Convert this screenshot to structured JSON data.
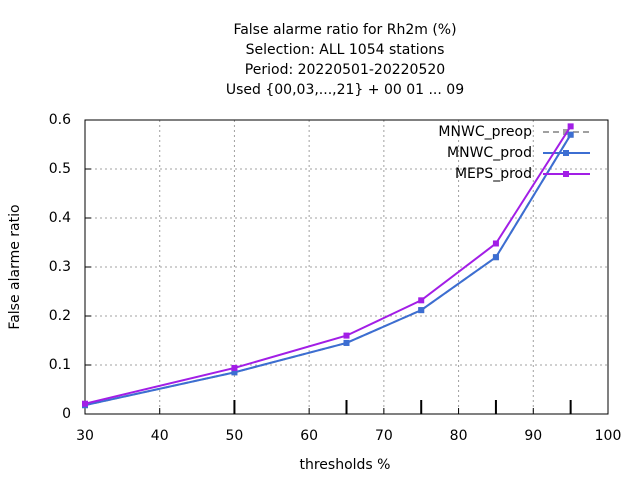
{
  "chart_data": {
    "type": "line",
    "title": [
      "False alarme ratio  for Rh2m (%)",
      "Selection: ALL   1054 stations",
      "Period: 20220501-20220520",
      "Used {00,03,...,21} + 00 01 ... 09"
    ],
    "x_label": "thresholds %",
    "y_label": "False alarme ratio",
    "x": [
      30,
      50,
      65,
      75,
      85,
      95
    ],
    "series": [
      {
        "name": "MNWC_preop",
        "color": "#a0a0a0",
        "dash": true,
        "values": [
          0.018,
          0.085,
          0.145,
          0.212,
          0.32,
          0.57
        ]
      },
      {
        "name": "MNWC_prod",
        "color": "#3c6ed2",
        "dash": false,
        "values": [
          0.018,
          0.085,
          0.145,
          0.212,
          0.32,
          0.57
        ]
      },
      {
        "name": "MEPS_prod",
        "color": "#a21ee6",
        "dash": false,
        "values": [
          0.021,
          0.094,
          0.16,
          0.232,
          0.348,
          0.587
        ]
      }
    ],
    "xlim": [
      30,
      100
    ],
    "xticks": [
      30,
      40,
      50,
      60,
      70,
      80,
      90,
      100
    ],
    "ylim": [
      0,
      0.6
    ],
    "yticks": [
      0,
      0.1,
      0.2,
      0.3,
      0.4,
      0.5,
      0.6
    ],
    "threshold_marks": [
      50,
      65,
      75,
      85,
      95
    ],
    "grid": true,
    "legend": "top-right"
  }
}
